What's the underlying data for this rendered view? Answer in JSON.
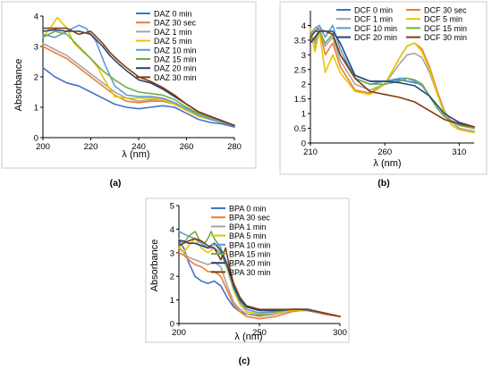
{
  "chart_data": [
    {
      "panel_label": "(a)",
      "type": "line",
      "xlabel": "λ (nm)",
      "ylabel": "Absorbance",
      "xlim": [
        200,
        280
      ],
      "ylim": [
        0,
        4
      ],
      "xticks": [
        200,
        220,
        240,
        260,
        280
      ],
      "yticks": [
        0,
        1,
        2,
        3,
        4
      ],
      "legend": "top-right",
      "series": [
        {
          "name": "DAZ 0 min",
          "color": "#4472c4",
          "x": [
            200,
            205,
            210,
            215,
            220,
            225,
            230,
            235,
            240,
            245,
            250,
            255,
            260,
            265,
            270,
            275,
            280
          ],
          "y": [
            2.3,
            2.0,
            1.8,
            1.7,
            1.5,
            1.3,
            1.1,
            1.0,
            0.95,
            1.0,
            1.05,
            1.0,
            0.8,
            0.6,
            0.5,
            0.45,
            0.35
          ]
        },
        {
          "name": "DAZ 30 sec",
          "color": "#ed7d31",
          "x": [
            200,
            205,
            210,
            215,
            220,
            225,
            230,
            235,
            240,
            245,
            250,
            255,
            260,
            265,
            270,
            275,
            280
          ],
          "y": [
            3.0,
            2.8,
            2.6,
            2.3,
            2.0,
            1.7,
            1.4,
            1.2,
            1.15,
            1.2,
            1.2,
            1.1,
            0.9,
            0.7,
            0.6,
            0.5,
            0.4
          ]
        },
        {
          "name": "DAZ 1 min",
          "color": "#a5a5a5",
          "x": [
            200,
            205,
            210,
            215,
            220,
            225,
            230,
            235,
            240,
            245,
            250,
            255,
            260,
            265,
            270,
            275,
            280
          ],
          "y": [
            3.1,
            2.9,
            2.7,
            2.4,
            2.1,
            1.8,
            1.5,
            1.3,
            1.2,
            1.25,
            1.25,
            1.1,
            0.9,
            0.7,
            0.6,
            0.5,
            0.4
          ]
        },
        {
          "name": "DAZ 5 min",
          "color": "#e6c700",
          "x": [
            200,
            203,
            206,
            210,
            213,
            217,
            220,
            223,
            225,
            228,
            230,
            235,
            240,
            245,
            250,
            255,
            260,
            265,
            270,
            275,
            280
          ],
          "y": [
            3.3,
            3.6,
            3.95,
            3.6,
            3.1,
            2.8,
            2.6,
            2.3,
            2.0,
            1.6,
            1.35,
            1.3,
            1.3,
            1.3,
            1.25,
            1.1,
            0.9,
            0.7,
            0.6,
            0.5,
            0.4
          ]
        },
        {
          "name": "DAZ 10 min",
          "color": "#5b9bd5",
          "x": [
            200,
            205,
            210,
            215,
            218,
            222,
            226,
            230,
            235,
            240,
            245,
            250,
            255,
            260,
            265,
            270,
            275,
            280
          ],
          "y": [
            3.4,
            3.3,
            3.5,
            3.7,
            3.6,
            3.2,
            2.4,
            1.7,
            1.4,
            1.35,
            1.35,
            1.3,
            1.15,
            0.95,
            0.75,
            0.6,
            0.5,
            0.4
          ]
        },
        {
          "name": "DAZ 15 min",
          "color": "#70ad47",
          "x": [
            200,
            205,
            210,
            215,
            220,
            225,
            230,
            235,
            240,
            245,
            250,
            255,
            260,
            265,
            270,
            275,
            280
          ],
          "y": [
            3.3,
            3.5,
            3.4,
            3.0,
            2.6,
            2.2,
            1.9,
            1.65,
            1.5,
            1.45,
            1.4,
            1.25,
            1.0,
            0.8,
            0.65,
            0.55,
            0.4
          ]
        },
        {
          "name": "DAZ 20 min",
          "color": "#264478",
          "x": [
            200,
            205,
            210,
            215,
            220,
            225,
            228,
            232,
            235,
            240,
            245,
            250,
            255,
            260,
            265,
            270,
            275,
            280
          ],
          "y": [
            3.5,
            3.55,
            3.5,
            3.5,
            3.4,
            3.0,
            2.7,
            2.4,
            2.2,
            1.9,
            1.8,
            1.6,
            1.35,
            1.1,
            0.85,
            0.7,
            0.55,
            0.4
          ]
        },
        {
          "name": "DAZ 30 min",
          "color": "#843c0c",
          "x": [
            200,
            205,
            210,
            215,
            220,
            225,
            228,
            232,
            235,
            240,
            245,
            250,
            255,
            260,
            265,
            270,
            275,
            280
          ],
          "y": [
            3.6,
            3.6,
            3.6,
            3.4,
            3.5,
            3.1,
            2.8,
            2.5,
            2.3,
            2.0,
            1.85,
            1.65,
            1.4,
            1.1,
            0.85,
            0.7,
            0.55,
            0.4
          ]
        }
      ]
    },
    {
      "panel_label": "(b)",
      "type": "line",
      "xlabel": "λ (nm)",
      "ylabel": "",
      "xlim": [
        210,
        320
      ],
      "ylim": [
        0,
        4.5
      ],
      "xticks": [
        210,
        260,
        310
      ],
      "yticks": [
        0,
        0.5,
        1,
        1.5,
        2,
        2.5,
        3,
        3.5,
        4
      ],
      "legend": "top-right",
      "series": [
        {
          "name": "DCF 0 min",
          "color": "#4472c4",
          "x": [
            210,
            215,
            220,
            225,
            230,
            240,
            250,
            260,
            270,
            275,
            280,
            285,
            290,
            295,
            300,
            305,
            310,
            320
          ],
          "y": [
            3.6,
            3.9,
            3.8,
            3.7,
            3.0,
            2.3,
            2.1,
            2.1,
            2.15,
            2.1,
            2.05,
            2.0,
            1.6,
            1.2,
            0.9,
            0.75,
            0.65,
            0.55
          ]
        },
        {
          "name": "DCF 30 sec",
          "color": "#ed7d31",
          "x": [
            210,
            213,
            216,
            220,
            225,
            230,
            240,
            250,
            260,
            270,
            275,
            280,
            285,
            290,
            295,
            300,
            305,
            310,
            320
          ],
          "y": [
            3.7,
            3.2,
            3.9,
            3.0,
            3.4,
            2.6,
            1.8,
            1.7,
            2.0,
            2.9,
            3.3,
            3.4,
            3.2,
            2.6,
            1.8,
            1.1,
            0.7,
            0.5,
            0.4
          ]
        },
        {
          "name": "DCF 1 min",
          "color": "#a5a5a5",
          "x": [
            210,
            213,
            216,
            220,
            225,
            230,
            240,
            250,
            260,
            270,
            275,
            280,
            285,
            290,
            295,
            300,
            305,
            310,
            320
          ],
          "y": [
            3.8,
            3.4,
            3.9,
            3.3,
            3.6,
            2.8,
            2.0,
            1.8,
            2.0,
            2.7,
            3.0,
            3.05,
            2.9,
            2.4,
            1.7,
            1.1,
            0.7,
            0.5,
            0.4
          ]
        },
        {
          "name": "DCF 5 min",
          "color": "#e6c700",
          "x": [
            210,
            213,
            216,
            220,
            225,
            230,
            240,
            250,
            260,
            270,
            275,
            280,
            285,
            290,
            295,
            300,
            305,
            310,
            320
          ],
          "y": [
            3.9,
            3.1,
            3.8,
            2.4,
            3.0,
            2.4,
            1.75,
            1.65,
            2.0,
            2.9,
            3.3,
            3.4,
            3.1,
            2.5,
            1.7,
            1.0,
            0.6,
            0.45,
            0.35
          ]
        },
        {
          "name": "DCF 10 min",
          "color": "#5b9bd5",
          "x": [
            210,
            213,
            216,
            220,
            225,
            230,
            240,
            250,
            260,
            270,
            275,
            280,
            285,
            290,
            295,
            300,
            305,
            310,
            320
          ],
          "y": [
            3.7,
            3.9,
            4.0,
            3.6,
            4.0,
            3.2,
            2.2,
            2.0,
            2.1,
            2.2,
            2.2,
            2.1,
            1.95,
            1.6,
            1.2,
            0.9,
            0.75,
            0.6,
            0.5
          ]
        },
        {
          "name": "DCF 15 min",
          "color": "#70ad47",
          "x": [
            210,
            213,
            216,
            220,
            225,
            230,
            240,
            250,
            260,
            270,
            275,
            280,
            285,
            290,
            295,
            300,
            305,
            310,
            320
          ],
          "y": [
            3.6,
            3.5,
            3.8,
            3.4,
            3.7,
            3.0,
            2.2,
            2.0,
            2.0,
            2.1,
            2.2,
            2.15,
            2.0,
            1.6,
            1.2,
            0.9,
            0.75,
            0.6,
            0.5
          ]
        },
        {
          "name": "DCF 20 min",
          "color": "#264478",
          "x": [
            210,
            213,
            216,
            220,
            225,
            230,
            240,
            250,
            260,
            270,
            280,
            290,
            300,
            310,
            320
          ],
          "y": [
            3.4,
            3.6,
            3.8,
            3.8,
            3.8,
            3.4,
            2.3,
            2.1,
            2.1,
            2.05,
            1.95,
            1.6,
            1.0,
            0.7,
            0.55
          ]
        },
        {
          "name": "DCF 30 min",
          "color": "#843c0c",
          "x": [
            210,
            213,
            216,
            220,
            225,
            230,
            240,
            250,
            260,
            270,
            280,
            290,
            300,
            310,
            320
          ],
          "y": [
            3.6,
            3.8,
            3.8,
            3.8,
            3.7,
            3.0,
            2.2,
            1.75,
            1.65,
            1.55,
            1.4,
            1.1,
            0.8,
            0.65,
            0.55
          ]
        }
      ]
    },
    {
      "panel_label": "(c)",
      "type": "line",
      "xlabel": "λ (nm)",
      "ylabel": "Absorbance",
      "xlim": [
        200,
        300
      ],
      "ylim": [
        0,
        5
      ],
      "xticks": [
        200,
        250,
        300
      ],
      "yticks": [
        0,
        1,
        2,
        3,
        4,
        5
      ],
      "legend": "top-right",
      "series": [
        {
          "name": "BPA 0 min",
          "color": "#4472c4",
          "x": [
            200,
            203,
            206,
            210,
            214,
            218,
            222,
            226,
            230,
            234,
            238,
            242,
            250,
            260,
            270,
            280,
            290,
            300
          ],
          "y": [
            3.5,
            3.2,
            2.6,
            2.0,
            1.8,
            1.7,
            1.8,
            1.6,
            1.1,
            0.7,
            0.5,
            0.4,
            0.35,
            0.45,
            0.55,
            0.55,
            0.4,
            0.3
          ]
        },
        {
          "name": "BPA 30 sec",
          "color": "#ed7d31",
          "x": [
            200,
            203,
            206,
            210,
            214,
            218,
            222,
            226,
            230,
            234,
            238,
            242,
            250,
            260,
            270,
            280,
            290,
            300
          ],
          "y": [
            3.0,
            2.9,
            2.7,
            2.5,
            2.4,
            2.2,
            2.2,
            2.0,
            1.4,
            0.8,
            0.5,
            0.3,
            0.2,
            0.3,
            0.5,
            0.6,
            0.4,
            0.3
          ]
        },
        {
          "name": "BPA 1 min",
          "color": "#a5a5a5",
          "x": [
            200,
            203,
            206,
            210,
            214,
            218,
            222,
            226,
            230,
            234,
            238,
            242,
            250,
            260,
            270,
            280,
            290,
            300
          ],
          "y": [
            3.2,
            3.0,
            2.8,
            2.7,
            2.6,
            2.5,
            2.6,
            2.4,
            1.6,
            0.9,
            0.6,
            0.4,
            0.3,
            0.4,
            0.55,
            0.6,
            0.45,
            0.3
          ]
        },
        {
          "name": "BPA 5 min",
          "color": "#e6c700",
          "x": [
            200,
            203,
            206,
            210,
            214,
            218,
            222,
            226,
            230,
            234,
            238,
            242,
            250,
            260,
            270,
            280,
            290,
            300
          ],
          "y": [
            3.3,
            3.0,
            3.3,
            3.6,
            3.2,
            3.0,
            3.2,
            3.0,
            2.3,
            1.4,
            0.8,
            0.5,
            0.4,
            0.45,
            0.55,
            0.6,
            0.45,
            0.3
          ]
        },
        {
          "name": "BPA 10 min",
          "color": "#5b9bd5",
          "x": [
            200,
            203,
            206,
            210,
            214,
            218,
            222,
            226,
            230,
            234,
            238,
            242,
            250,
            260,
            270,
            280,
            290,
            300
          ],
          "y": [
            3.9,
            3.8,
            3.7,
            3.6,
            3.4,
            3.2,
            3.2,
            3.0,
            2.4,
            1.5,
            0.9,
            0.6,
            0.45,
            0.5,
            0.6,
            0.6,
            0.45,
            0.3
          ]
        },
        {
          "name": "BPA 15 min",
          "color": "#70ad47",
          "x": [
            200,
            203,
            206,
            210,
            213,
            216,
            218,
            220,
            222,
            226,
            230,
            234,
            238,
            242,
            250,
            260,
            270,
            280,
            290,
            300
          ],
          "y": [
            3.6,
            3.4,
            3.7,
            3.9,
            3.5,
            3.4,
            3.6,
            3.9,
            3.6,
            3.2,
            2.5,
            1.6,
            1.0,
            0.7,
            0.55,
            0.55,
            0.6,
            0.6,
            0.45,
            0.3
          ]
        },
        {
          "name": "BPA 20 min",
          "color": "#264478",
          "x": [
            200,
            203,
            206,
            210,
            214,
            218,
            222,
            226,
            230,
            234,
            238,
            242,
            250,
            260,
            270,
            280,
            290,
            300
          ],
          "y": [
            3.5,
            3.5,
            3.4,
            3.4,
            3.3,
            3.2,
            3.4,
            3.1,
            2.5,
            1.6,
            1.0,
            0.7,
            0.55,
            0.55,
            0.6,
            0.6,
            0.45,
            0.3
          ]
        },
        {
          "name": "BPA 30 min",
          "color": "#843c0c",
          "x": [
            200,
            203,
            206,
            210,
            214,
            218,
            222,
            226,
            229,
            232,
            234,
            238,
            242,
            250,
            260,
            270,
            280,
            290,
            300
          ],
          "y": [
            3.3,
            3.4,
            3.5,
            3.6,
            3.5,
            3.3,
            3.2,
            2.7,
            3.2,
            2.2,
            1.7,
            1.1,
            0.75,
            0.6,
            0.6,
            0.6,
            0.6,
            0.45,
            0.3
          ]
        }
      ]
    }
  ]
}
